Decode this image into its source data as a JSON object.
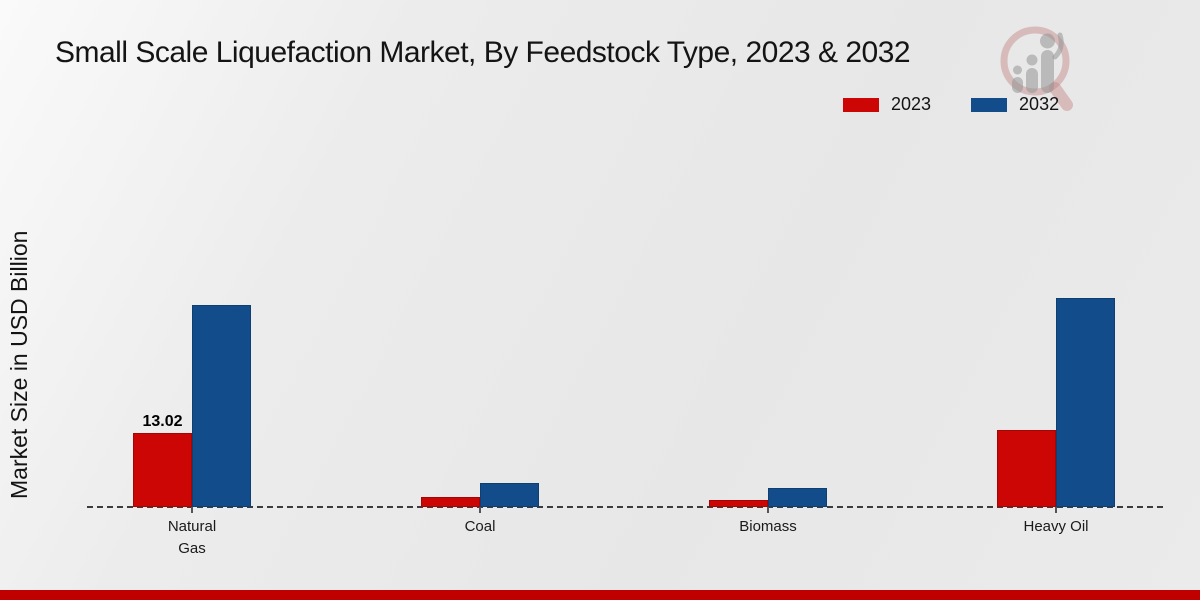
{
  "page": {
    "watermark": "market-research-future-logo",
    "footer_color": "#c00000"
  },
  "chart_data": {
    "type": "bar",
    "title": "Small Scale Liquefaction Market, By Feedstock Type, 2023 & 2032",
    "ylabel": "Market Size in USD Billion",
    "xlabel": "",
    "categories": [
      "Natural Gas",
      "Coal",
      "Biomass",
      "Heavy Oil"
    ],
    "category_display": [
      "Natural\nGas",
      "Coal",
      "Biomass",
      "Heavy Oil"
    ],
    "series": [
      {
        "name": "2023",
        "color": "#cc0505",
        "values": [
          13.02,
          1.8,
          1.2,
          13.7
        ],
        "value_labels": [
          "13.02",
          "",
          "",
          ""
        ]
      },
      {
        "name": "2032",
        "color": "#134c8a",
        "values": [
          35.8,
          4.2,
          3.4,
          37.0
        ],
        "value_labels": [
          "",
          "",
          "",
          ""
        ]
      }
    ],
    "ylim": [
      0,
      40
    ],
    "grid": false,
    "legend_position": "top-right",
    "baseline_style": "dashed"
  }
}
